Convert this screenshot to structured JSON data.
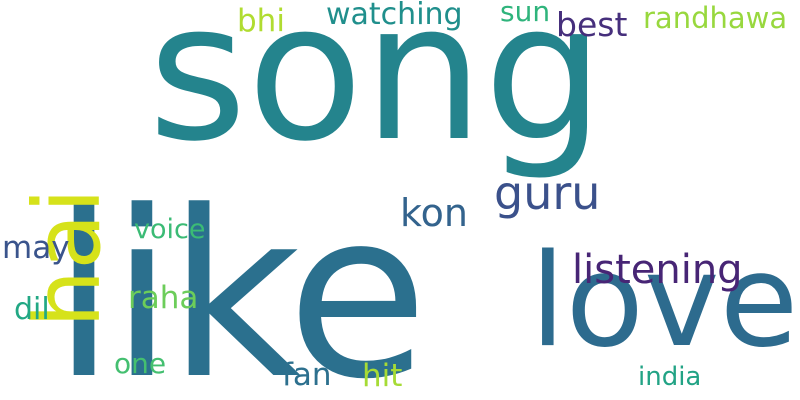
{
  "words": {
    "song": "song",
    "like": "like",
    "love": "love",
    "hai": "hai",
    "guru": "guru",
    "listening": "listening",
    "kon": "kon",
    "best": "best",
    "watching": "watching",
    "bhi": "bhi",
    "sun": "sun",
    "randhawa": "randhawa",
    "raha": "raha",
    "may": "may",
    "voice": "voice",
    "dil": "dil",
    "fan": "fan",
    "hit": "hit",
    "one": "one",
    "india": "india"
  },
  "colors": {
    "background": "#ffffff",
    "song": "#24848d",
    "like": "#2b708e",
    "love": "#2d6b8e",
    "hai": "#d6e21a",
    "guru": "#3b518b",
    "listening": "#472575",
    "kon": "#33638d",
    "best": "#462f7c",
    "watching": "#208f8c",
    "bhi": "#b0dc31",
    "sun": "#2fb47c",
    "randhawa": "#98d83e",
    "raha": "#6ccd5a",
    "may": "#3a548c",
    "voice": "#3bbb75",
    "dil": "#22a884",
    "fan": "#2d708e",
    "hit": "#a6db35",
    "one": "#44bf70",
    "india": "#22a385"
  }
}
